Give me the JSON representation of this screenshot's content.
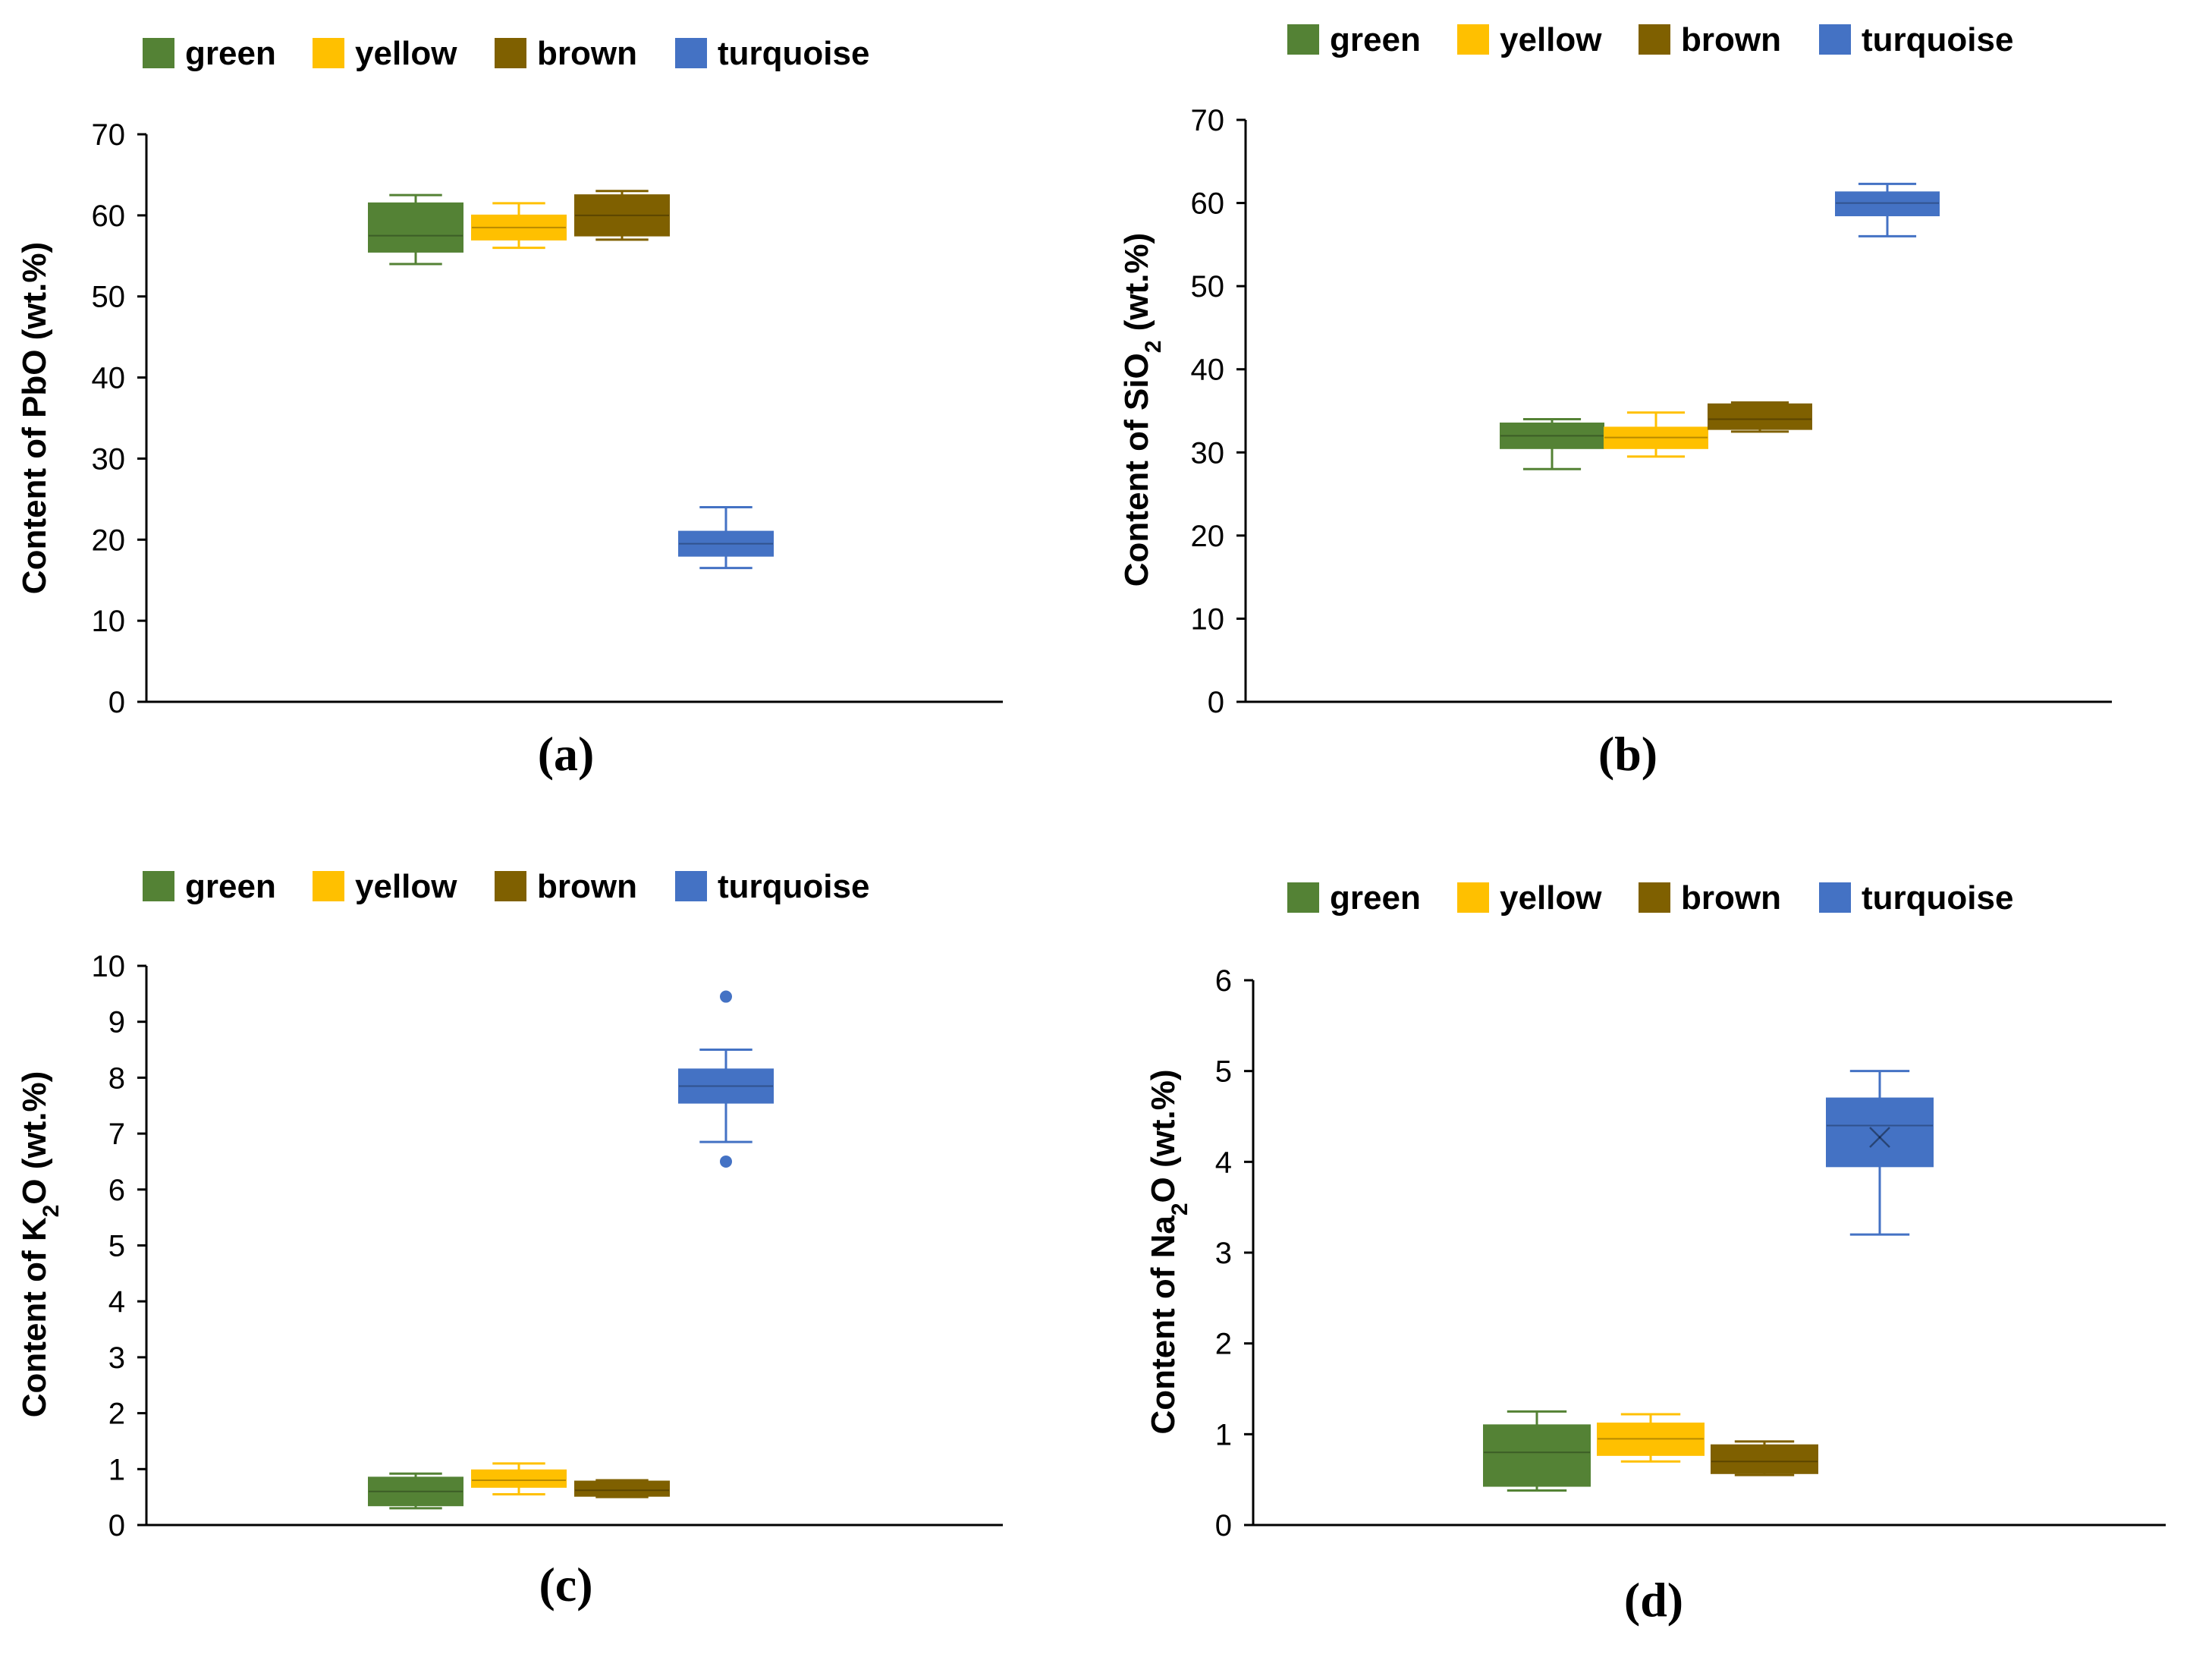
{
  "colors": {
    "green": "#548235",
    "yellow": "#FFC000",
    "brown": "#7F6000",
    "turquoise": "#4472C4",
    "axis": "#000000"
  },
  "chart_data": [
    {
      "type": "box",
      "panel_label": "(a)",
      "ylabel_prefix": "Content of PbO",
      "ylabel_sub": "",
      "ylabel_suffix": " (wt.%)",
      "ylim": [
        0,
        70
      ],
      "yticks": [
        0,
        10,
        20,
        30,
        40,
        50,
        60,
        70
      ],
      "legend": [
        "green",
        "yellow",
        "brown",
        "turquoise"
      ],
      "series": [
        {
          "name": "green",
          "color": "green",
          "whisker_low": 54.0,
          "q1": 55.5,
          "median": 57.5,
          "q3": 61.5,
          "whisker_high": 62.5,
          "outliers": []
        },
        {
          "name": "yellow",
          "color": "yellow",
          "whisker_low": 56.0,
          "q1": 57.0,
          "median": 58.5,
          "q3": 60.0,
          "whisker_high": 61.5,
          "outliers": []
        },
        {
          "name": "brown",
          "color": "brown",
          "whisker_low": 57.0,
          "q1": 57.5,
          "median": 60.0,
          "q3": 62.5,
          "whisker_high": 63.0,
          "outliers": []
        },
        {
          "name": "turquoise",
          "color": "turquoise",
          "whisker_low": 16.5,
          "q1": 18.0,
          "median": 19.5,
          "q3": 21.0,
          "whisker_high": 24.0,
          "outliers": []
        }
      ]
    },
    {
      "type": "box",
      "panel_label": "(b)",
      "ylabel_prefix": "Content of SiO",
      "ylabel_sub": "2",
      "ylabel_suffix": " (wt.%)",
      "ylim": [
        0,
        70
      ],
      "yticks": [
        0,
        10,
        20,
        30,
        40,
        50,
        60,
        70
      ],
      "legend": [
        "green",
        "yellow",
        "brown",
        "turquoise"
      ],
      "series": [
        {
          "name": "green",
          "color": "green",
          "whisker_low": 28.0,
          "q1": 30.5,
          "median": 32.0,
          "q3": 33.5,
          "whisker_high": 34.0,
          "outliers": []
        },
        {
          "name": "yellow",
          "color": "yellow",
          "whisker_low": 29.5,
          "q1": 30.5,
          "median": 31.8,
          "q3": 33.0,
          "whisker_high": 34.8,
          "outliers": []
        },
        {
          "name": "brown",
          "color": "brown",
          "whisker_low": 32.5,
          "q1": 32.8,
          "median": 34.0,
          "q3": 35.8,
          "whisker_high": 36.0,
          "outliers": []
        },
        {
          "name": "turquoise",
          "color": "turquoise",
          "whisker_low": 56.0,
          "q1": 58.5,
          "median": 60.0,
          "q3": 61.3,
          "whisker_high": 62.3,
          "outliers": []
        }
      ]
    },
    {
      "type": "box",
      "panel_label": "(c)",
      "ylabel_prefix": "Content of K",
      "ylabel_sub": "2",
      "ylabel_suffix": "O (wt.%)",
      "ylim": [
        0,
        10
      ],
      "yticks": [
        0,
        1,
        2,
        3,
        4,
        5,
        6,
        7,
        8,
        9,
        10
      ],
      "legend": [
        "green",
        "yellow",
        "brown",
        "turquoise"
      ],
      "series": [
        {
          "name": "green",
          "color": "green",
          "whisker_low": 0.3,
          "q1": 0.35,
          "median": 0.6,
          "q3": 0.85,
          "whisker_high": 0.92,
          "outliers": []
        },
        {
          "name": "yellow",
          "color": "yellow",
          "whisker_low": 0.55,
          "q1": 0.68,
          "median": 0.8,
          "q3": 0.98,
          "whisker_high": 1.1,
          "outliers": []
        },
        {
          "name": "brown",
          "color": "brown",
          "whisker_low": 0.5,
          "q1": 0.52,
          "median": 0.62,
          "q3": 0.78,
          "whisker_high": 0.8,
          "outliers": []
        },
        {
          "name": "turquoise",
          "color": "turquoise",
          "whisker_low": 6.85,
          "q1": 7.55,
          "median": 7.85,
          "q3": 8.15,
          "whisker_high": 8.5,
          "outliers": [
            9.45,
            6.5
          ]
        }
      ]
    },
    {
      "type": "box",
      "panel_label": "(d)",
      "ylabel_prefix": "Content of Na",
      "ylabel_sub": "2",
      "ylabel_suffix": "O (wt.%)",
      "ylim": [
        0,
        6
      ],
      "yticks": [
        0,
        1,
        2,
        3,
        4,
        5,
        6
      ],
      "legend": [
        "green",
        "yellow",
        "brown",
        "turquoise"
      ],
      "series": [
        {
          "name": "green",
          "color": "green",
          "whisker_low": 0.38,
          "q1": 0.43,
          "median": 0.8,
          "q3": 1.1,
          "whisker_high": 1.25,
          "outliers": []
        },
        {
          "name": "yellow",
          "color": "yellow",
          "whisker_low": 0.7,
          "q1": 0.77,
          "median": 0.95,
          "q3": 1.12,
          "whisker_high": 1.22,
          "outliers": []
        },
        {
          "name": "brown",
          "color": "brown",
          "whisker_low": 0.55,
          "q1": 0.57,
          "median": 0.7,
          "q3": 0.88,
          "whisker_high": 0.92,
          "outliers": []
        },
        {
          "name": "turquoise",
          "color": "turquoise",
          "whisker_low": 3.2,
          "q1": 3.95,
          "median": 4.4,
          "q3": 4.7,
          "whisker_high": 5.0,
          "outliers": [],
          "mean": 4.27
        }
      ]
    }
  ]
}
